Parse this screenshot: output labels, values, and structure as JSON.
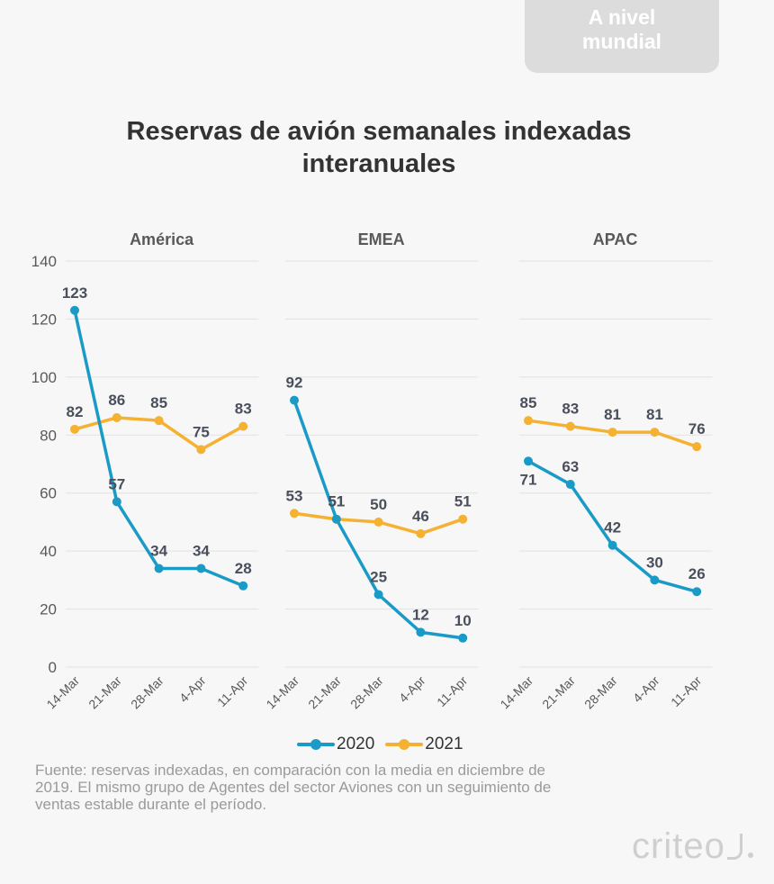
{
  "badge": {
    "line1": "A nivel",
    "line2": "mundial"
  },
  "header": {
    "title_line1": "Reservas de avión semanales indexadas",
    "title_line2": "interanuales"
  },
  "legend": [
    {
      "label": "2020",
      "color": "#1a9bc7"
    },
    {
      "label": "2021",
      "color": "#f5b131"
    }
  ],
  "footer": {
    "source_line1": "Fuente: reservas indexadas, en comparación con la media en diciembre de",
    "source_line2": "2019. El mismo grupo de Agentes del sector Aviones con un seguimiento de",
    "source_line3": "ventas estable durante el período.",
    "logo_text": "criteo"
  },
  "chart_data": [
    {
      "type": "line",
      "title": "América",
      "categories": [
        "14-Mar",
        "21-Mar",
        "28-Mar",
        "4-Apr",
        "11-Apr"
      ],
      "series": [
        {
          "name": "2020",
          "color": "#1a9bc7",
          "values": [
            123,
            57,
            34,
            34,
            28
          ]
        },
        {
          "name": "2021",
          "color": "#f5b131",
          "values": [
            82,
            86,
            85,
            75,
            83
          ]
        }
      ],
      "ylim": [
        0,
        140
      ],
      "yticks": [
        0,
        20,
        40,
        60,
        80,
        100,
        120,
        140
      ],
      "grid": true,
      "legend": "bottom"
    },
    {
      "type": "line",
      "title": "EMEA",
      "categories": [
        "14-Mar",
        "21-Mar",
        "28-Mar",
        "4-Apr",
        "11-Apr"
      ],
      "series": [
        {
          "name": "2020",
          "color": "#1a9bc7",
          "values": [
            92,
            51,
            25,
            12,
            10
          ]
        },
        {
          "name": "2021",
          "color": "#f5b131",
          "values": [
            53,
            51,
            50,
            46,
            51
          ]
        }
      ],
      "ylim": [
        0,
        140
      ],
      "grid": true
    },
    {
      "type": "line",
      "title": "APAC",
      "categories": [
        "14-Mar",
        "21-Mar",
        "28-Mar",
        "4-Apr",
        "11-Apr"
      ],
      "series": [
        {
          "name": "2020",
          "color": "#1a9bc7",
          "values": [
            71,
            63,
            42,
            30,
            26
          ]
        },
        {
          "name": "2021",
          "color": "#f5b131",
          "values": [
            85,
            83,
            81,
            81,
            76
          ]
        }
      ],
      "ylim": [
        0,
        140
      ],
      "grid": true
    }
  ]
}
